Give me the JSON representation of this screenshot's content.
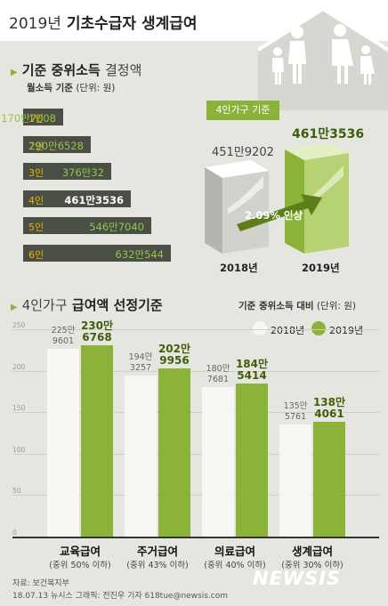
{
  "title": {
    "year": "2019년",
    "main": "기초수급자 생계급여"
  },
  "section1": {
    "title": "기준 중위소득",
    "title_suffix": "결정액",
    "unit_main": "월소득 기준",
    "unit_sub": "(단위: 원)"
  },
  "household_chart": {
    "type": "bar",
    "categories": [
      "1인",
      "2인",
      "3인",
      "4인",
      "5인",
      "6인"
    ],
    "value_labels": [
      "170만7008",
      "290만6528",
      "376만32",
      "461만3536",
      "546만7040",
      "632만544"
    ],
    "values": [
      1707008,
      2906528,
      3760032,
      4613536,
      5467040,
      6320544
    ],
    "highlight_index": 3
  },
  "comparison": {
    "callout": "4인가구 기준",
    "values": [
      "451만9202",
      "461만3536"
    ],
    "years": [
      "2018년",
      "2019년"
    ],
    "change": "2.09% 인상"
  },
  "section2": {
    "title_prefix": "4인가구",
    "title_bold": "급여액 선정기준",
    "note": "기준 중위소득 대비",
    "unit": "(단위: 원)"
  },
  "legend": [
    "2018년",
    "2019년"
  ],
  "colors": {
    "accent_green": "#8bb33a",
    "dark_bar": "#4a4f45",
    "label_yellow": "#e6b800",
    "white_bar": "#f6f6f3"
  },
  "chart_data": {
    "type": "bar",
    "categories": [
      "교육급여",
      "주거급여",
      "의료급여",
      "생계급여"
    ],
    "category_notes": [
      "(중위 50% 이하)",
      "(중위 43% 이하)",
      "(중위 40% 이하)",
      "(중위 30% 이하)"
    ],
    "series": [
      {
        "name": "2018년",
        "values": [
          2259601,
          1943257,
          1807681,
          1355761
        ],
        "labels": [
          [
            "225만",
            "9601"
          ],
          [
            "194만",
            "3257"
          ],
          [
            "180만",
            "7681"
          ],
          [
            "135만",
            "5761"
          ]
        ]
      },
      {
        "name": "2019년",
        "values": [
          2306768,
          2029956,
          1845414,
          1384061
        ],
        "labels": [
          [
            "230만",
            "6768"
          ],
          [
            "202만",
            "9956"
          ],
          [
            "184만",
            "5414"
          ],
          [
            "138만",
            "4061"
          ]
        ]
      }
    ],
    "y_ticks": [
      "0",
      "50",
      "100",
      "150",
      "200",
      "250"
    ],
    "ylim": [
      0,
      2500000
    ]
  },
  "source": {
    "line1": "자료: 보건복지부",
    "line2": "18.07.13 뉴시스 그래픽: 전진우 기자 618tue@newsis.com"
  },
  "watermark": "NEWSIS"
}
